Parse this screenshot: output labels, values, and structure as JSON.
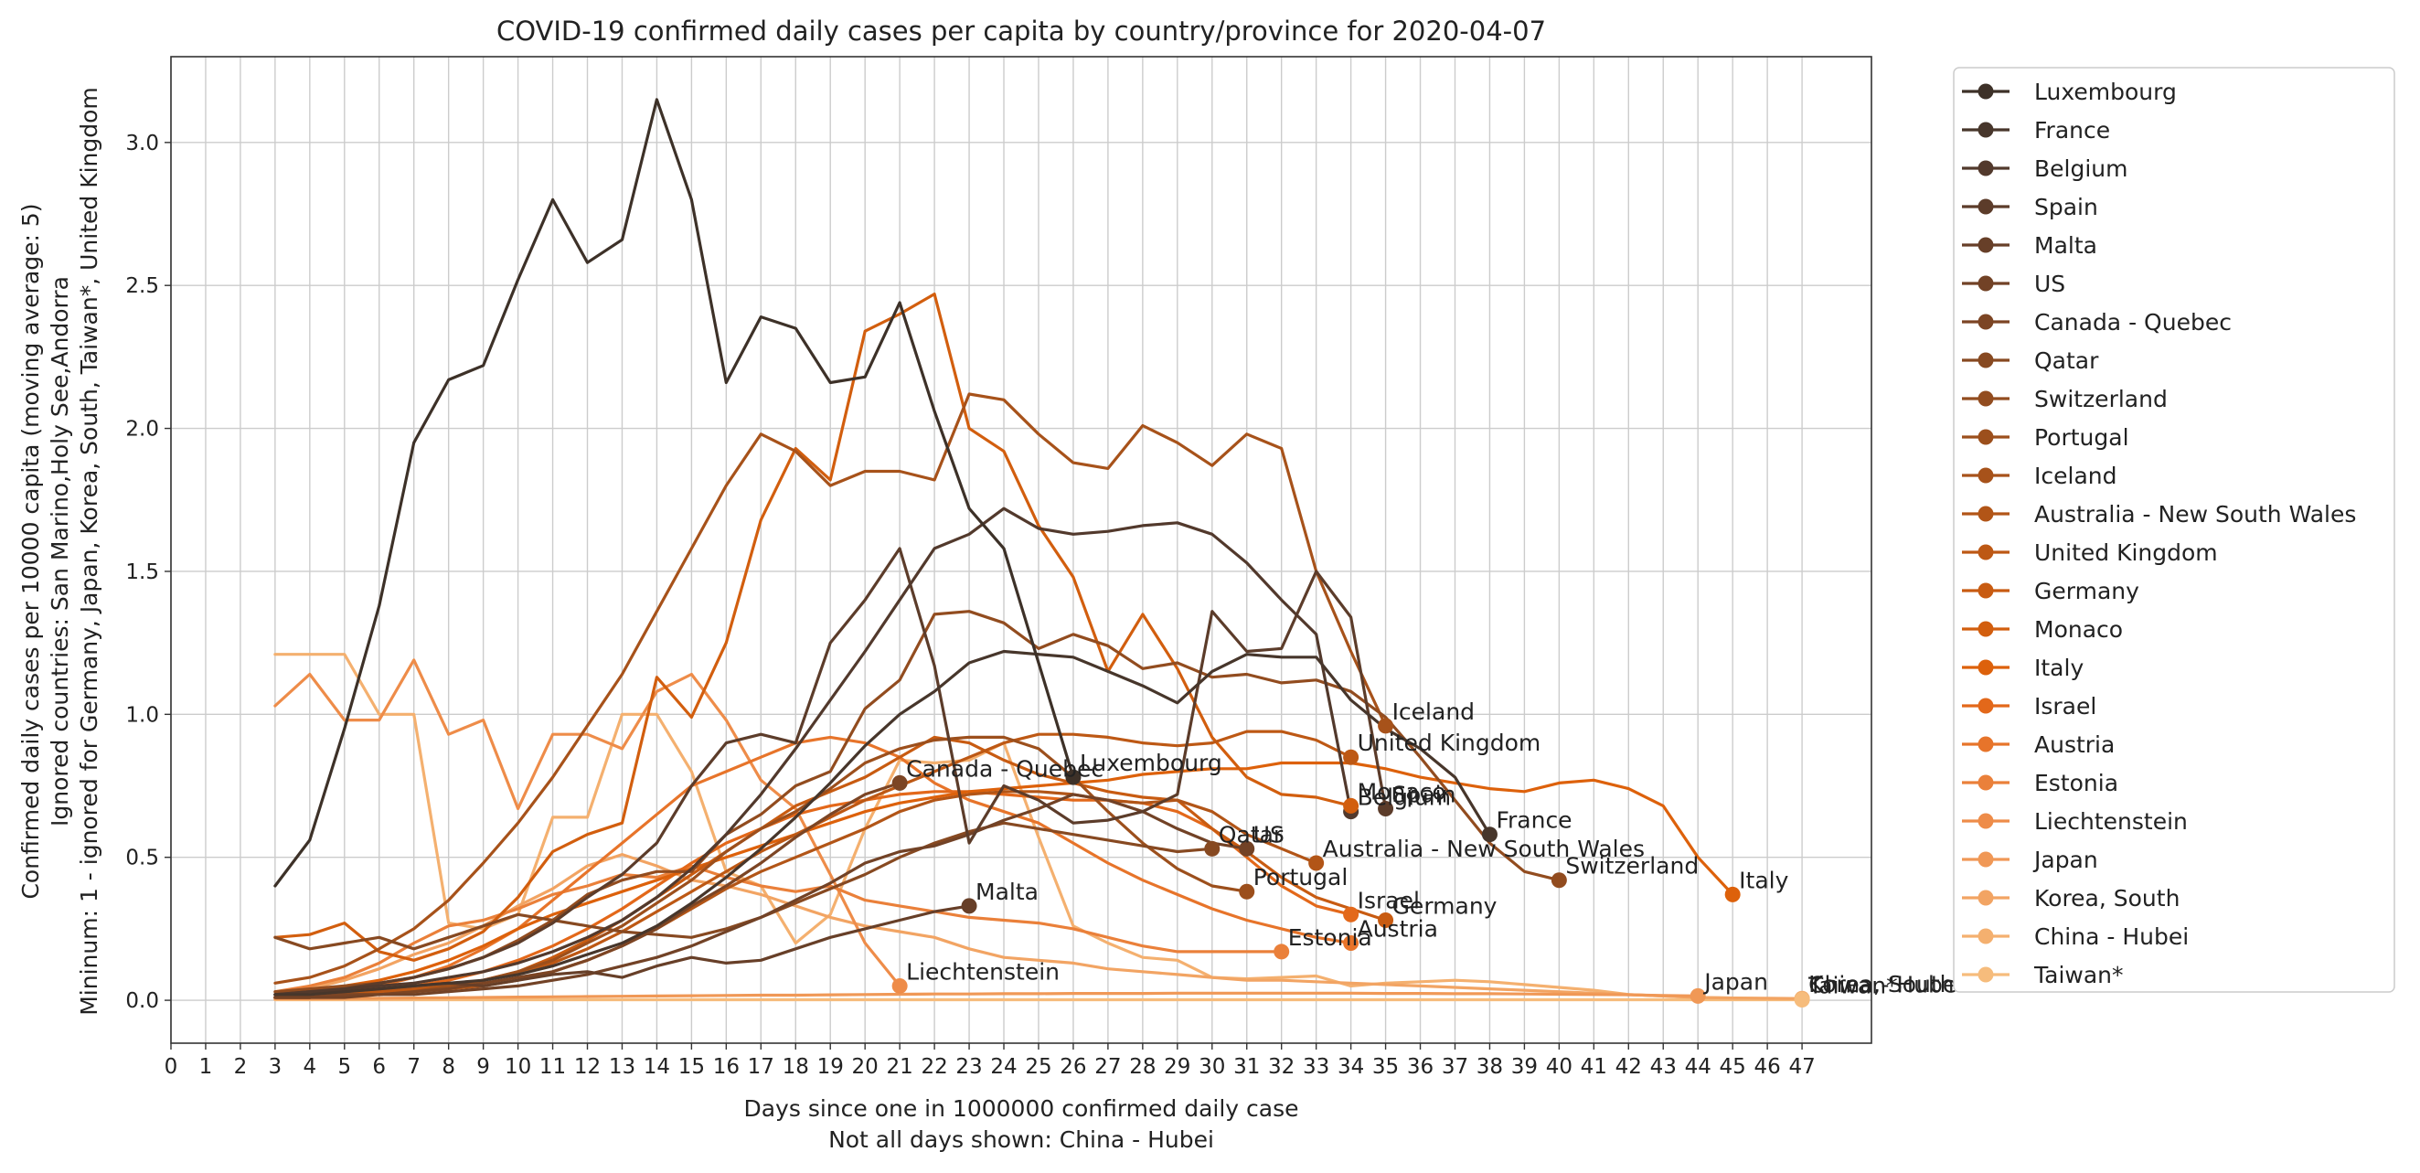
{
  "chart_data": {
    "type": "line",
    "title": "COVID-19 confirmed daily cases per capita by country/province for 2020-04-07",
    "xlabel": "Days since one in 1000000 confirmed daily case",
    "xlabel_note": "Not all days shown: China - Hubei",
    "ylabel_lines": [
      "Confirmed daily cases per 10000 capita (moving average: 5)",
      "Ignored countries: San Marino,Holy See,Andorra",
      "Mininum: 1 - ignored for Germany, Japan, Korea, South, Taiwan*, United Kingdom"
    ],
    "xlim": [
      0,
      49
    ],
    "ylim": [
      -0.15,
      3.3
    ],
    "x_ticks": [
      0,
      1,
      2,
      3,
      4,
      5,
      6,
      7,
      8,
      9,
      10,
      11,
      12,
      13,
      14,
      15,
      16,
      17,
      18,
      19,
      20,
      21,
      22,
      23,
      24,
      25,
      26,
      27,
      28,
      29,
      30,
      31,
      32,
      33,
      34,
      35,
      36,
      37,
      38,
      39,
      40,
      41,
      42,
      43,
      44,
      45,
      46,
      47
    ],
    "y_ticks": [
      0.0,
      0.5,
      1.0,
      1.5,
      2.0,
      2.5,
      3.0
    ],
    "y_tick_labels": [
      "0.0",
      "0.5",
      "1.0",
      "1.5",
      "2.0",
      "2.5",
      "3.0"
    ],
    "grid": true,
    "legend_position": "outside-right",
    "series": [
      {
        "name": "Luxembourg",
        "color": "#3d3128",
        "label_end": "Luxembourg",
        "x_start": 3,
        "values": [
          0.4,
          0.56,
          0.95,
          1.38,
          1.95,
          2.17,
          2.22,
          2.52,
          2.8,
          2.58,
          2.66,
          3.15,
          2.8,
          2.16,
          2.39,
          2.35,
          2.16,
          2.18,
          2.44,
          2.06,
          1.72,
          1.58,
          1.18,
          0.78
        ]
      },
      {
        "name": "France",
        "color": "#47362b",
        "label_end": "France",
        "x_start": 3,
        "values": [
          0.02,
          0.02,
          0.03,
          0.04,
          0.05,
          0.06,
          0.07,
          0.09,
          0.12,
          0.16,
          0.2,
          0.26,
          0.34,
          0.43,
          0.53,
          0.64,
          0.76,
          0.89,
          1.0,
          1.08,
          1.18,
          1.22,
          1.21,
          1.2,
          1.15,
          1.1,
          1.04,
          1.15,
          1.21,
          1.2,
          1.2,
          1.05,
          0.95,
          0.88,
          0.78,
          0.58
        ]
      },
      {
        "name": "Belgium",
        "color": "#52392c",
        "label_end": "Belgium",
        "x_start": 3,
        "values": [
          0.02,
          0.03,
          0.04,
          0.05,
          0.06,
          0.08,
          0.1,
          0.13,
          0.17,
          0.22,
          0.28,
          0.36,
          0.46,
          0.58,
          0.72,
          0.88,
          1.05,
          1.22,
          1.4,
          1.58,
          1.63,
          1.72,
          1.65,
          1.63,
          1.64,
          1.66,
          1.67,
          1.63,
          1.53,
          1.4,
          1.28,
          0.66
        ]
      },
      {
        "name": "Spain",
        "color": "#5c3c2a",
        "label_end": "Spain",
        "x_start": 3,
        "values": [
          0.02,
          0.03,
          0.04,
          0.06,
          0.08,
          0.11,
          0.15,
          0.2,
          0.27,
          0.36,
          0.44,
          0.55,
          0.75,
          0.9,
          0.93,
          0.9,
          1.25,
          1.4,
          1.58,
          1.17,
          0.55,
          0.75,
          0.7,
          0.62,
          0.63,
          0.66,
          0.72,
          1.36,
          1.22,
          1.23,
          1.5,
          1.34,
          0.67
        ]
      },
      {
        "name": "Malta",
        "color": "#673f28",
        "label_end": "Malta",
        "x_start": 3,
        "values": [
          0.02,
          0.03,
          0.03,
          0.04,
          0.05,
          0.06,
          0.05,
          0.07,
          0.09,
          0.1,
          0.08,
          0.12,
          0.15,
          0.13,
          0.14,
          0.18,
          0.22,
          0.25,
          0.28,
          0.31,
          0.33
        ]
      },
      {
        "name": "US",
        "color": "#724226",
        "label_end": "US",
        "x_start": 3,
        "values": [
          0.01,
          0.01,
          0.01,
          0.02,
          0.02,
          0.03,
          0.04,
          0.05,
          0.07,
          0.09,
          0.12,
          0.15,
          0.19,
          0.24,
          0.29,
          0.35,
          0.41,
          0.48,
          0.52,
          0.54,
          0.58,
          0.63,
          0.67,
          0.72,
          0.7,
          0.66,
          0.6,
          0.55,
          0.53
        ]
      },
      {
        "name": "Canada - Quebec",
        "color": "#7c4524",
        "label_end": "Canada - Quebec",
        "x_start": 3,
        "values": [
          0.01,
          0.01,
          0.02,
          0.02,
          0.03,
          0.04,
          0.06,
          0.08,
          0.1,
          0.14,
          0.19,
          0.25,
          0.33,
          0.4,
          0.48,
          0.57,
          0.65,
          0.72,
          0.76
        ]
      },
      {
        "name": "Qatar",
        "color": "#874921",
        "label_end": "Qatar",
        "x_start": 3,
        "values": [
          0.22,
          0.18,
          0.2,
          0.22,
          0.18,
          0.22,
          0.26,
          0.3,
          0.28,
          0.26,
          0.24,
          0.23,
          0.22,
          0.25,
          0.29,
          0.34,
          0.39,
          0.44,
          0.5,
          0.55,
          0.59,
          0.62,
          0.6,
          0.58,
          0.56,
          0.54,
          0.52,
          0.53
        ]
      },
      {
        "name": "Switzerland",
        "color": "#924c1f",
        "label_end": "Switzerland",
        "x_start": 3,
        "values": [
          0.03,
          0.04,
          0.05,
          0.06,
          0.08,
          0.11,
          0.15,
          0.21,
          0.28,
          0.37,
          0.42,
          0.45,
          0.45,
          0.58,
          0.65,
          0.75,
          0.8,
          1.02,
          1.12,
          1.35,
          1.36,
          1.32,
          1.23,
          1.28,
          1.24,
          1.16,
          1.18,
          1.13,
          1.14,
          1.11,
          1.12,
          1.08,
          0.99,
          0.85,
          0.7,
          0.55,
          0.45,
          0.42
        ]
      },
      {
        "name": "Portugal",
        "color": "#9c4f1c",
        "label_end": "Portugal",
        "x_start": 3,
        "values": [
          0.01,
          0.01,
          0.02,
          0.02,
          0.03,
          0.05,
          0.07,
          0.1,
          0.14,
          0.2,
          0.26,
          0.34,
          0.42,
          0.52,
          0.6,
          0.66,
          0.74,
          0.83,
          0.88,
          0.91,
          0.92,
          0.92,
          0.88,
          0.78,
          0.66,
          0.55,
          0.46,
          0.4,
          0.38
        ]
      },
      {
        "name": "Iceland",
        "color": "#a7521a",
        "label_end": "Iceland",
        "x_start": 3,
        "values": [
          0.06,
          0.08,
          0.12,
          0.18,
          0.25,
          0.35,
          0.48,
          0.62,
          0.78,
          0.96,
          1.14,
          1.36,
          1.58,
          1.8,
          1.98,
          1.92,
          1.8,
          1.85,
          1.85,
          1.82,
          2.12,
          2.1,
          1.98,
          1.88,
          1.86,
          2.01,
          1.95,
          1.87,
          1.98,
          1.93,
          1.5,
          1.22,
          0.96
        ]
      },
      {
        "name": "Australia - New South Wales",
        "color": "#b25517",
        "label_end": "Australia - New South Wales",
        "x_start": 3,
        "values": [
          0.01,
          0.01,
          0.02,
          0.02,
          0.03,
          0.04,
          0.05,
          0.07,
          0.1,
          0.14,
          0.19,
          0.25,
          0.32,
          0.39,
          0.45,
          0.5,
          0.55,
          0.6,
          0.66,
          0.7,
          0.72,
          0.73,
          0.73,
          0.72,
          0.7,
          0.69,
          0.7,
          0.66,
          0.58,
          0.53,
          0.48
        ]
      },
      {
        "name": "United Kingdom",
        "color": "#bd5814",
        "label_end": "United Kingdom",
        "x_start": 3,
        "values": [
          0.01,
          0.01,
          0.02,
          0.03,
          0.04,
          0.05,
          0.07,
          0.1,
          0.13,
          0.18,
          0.24,
          0.31,
          0.38,
          0.45,
          0.52,
          0.58,
          0.64,
          0.7,
          0.75,
          0.8,
          0.85,
          0.9,
          0.93,
          0.93,
          0.92,
          0.9,
          0.89,
          0.9,
          0.94,
          0.94,
          0.91,
          0.85
        ]
      },
      {
        "name": "Germany",
        "color": "#c85b11",
        "label_end": "Germany",
        "x_start": 3,
        "values": [
          0.01,
          0.01,
          0.02,
          0.02,
          0.03,
          0.05,
          0.07,
          0.1,
          0.15,
          0.21,
          0.28,
          0.36,
          0.44,
          0.52,
          0.6,
          0.68,
          0.73,
          0.78,
          0.85,
          0.92,
          0.9,
          0.84,
          0.79,
          0.76,
          0.73,
          0.71,
          0.7,
          0.6,
          0.52,
          0.43,
          0.36,
          0.32,
          0.28
        ]
      },
      {
        "name": "Monaco",
        "color": "#d25e0e",
        "label_end": "Monaco",
        "x_start": 3,
        "values": [
          0.22,
          0.23,
          0.27,
          0.17,
          0.14,
          0.18,
          0.24,
          0.36,
          0.52,
          0.58,
          0.62,
          1.13,
          0.99,
          1.25,
          1.68,
          1.93,
          1.82,
          2.34,
          2.4,
          2.47,
          2.0,
          1.92,
          1.66,
          1.48,
          1.15,
          1.35,
          1.16,
          0.92,
          0.78,
          0.72,
          0.71,
          0.68
        ]
      },
      {
        "name": "Italy",
        "color": "#dd610b",
        "label_end": "Italy",
        "x_start": 3,
        "values": [
          0.02,
          0.03,
          0.05,
          0.07,
          0.1,
          0.14,
          0.19,
          0.25,
          0.3,
          0.34,
          0.38,
          0.42,
          0.46,
          0.5,
          0.54,
          0.58,
          0.62,
          0.66,
          0.69,
          0.71,
          0.73,
          0.74,
          0.75,
          0.76,
          0.77,
          0.79,
          0.8,
          0.81,
          0.81,
          0.83,
          0.83,
          0.83,
          0.81,
          0.78,
          0.76,
          0.74,
          0.73,
          0.76,
          0.77,
          0.74,
          0.68,
          0.5,
          0.37
        ]
      },
      {
        "name": "Israel",
        "color": "#e3681a",
        "label_end": "Israel",
        "x_start": 3,
        "values": [
          0.02,
          0.02,
          0.03,
          0.04,
          0.05,
          0.07,
          0.1,
          0.14,
          0.19,
          0.25,
          0.32,
          0.4,
          0.48,
          0.55,
          0.6,
          0.65,
          0.68,
          0.7,
          0.72,
          0.73,
          0.73,
          0.72,
          0.71,
          0.7,
          0.7,
          0.69,
          0.66,
          0.6,
          0.5,
          0.4,
          0.33,
          0.3
        ]
      },
      {
        "name": "Austria",
        "color": "#e7742a",
        "label_end": "Austria",
        "x_start": 3,
        "values": [
          0.01,
          0.02,
          0.03,
          0.05,
          0.08,
          0.12,
          0.18,
          0.25,
          0.35,
          0.45,
          0.55,
          0.65,
          0.75,
          0.8,
          0.85,
          0.9,
          0.92,
          0.9,
          0.85,
          0.76,
          0.7,
          0.66,
          0.62,
          0.55,
          0.48,
          0.42,
          0.37,
          0.32,
          0.28,
          0.25,
          0.22,
          0.2
        ]
      },
      {
        "name": "Estonia",
        "color": "#ea803a",
        "label_end": "Estonia",
        "x_start": 3,
        "values": [
          0.03,
          0.05,
          0.08,
          0.13,
          0.2,
          0.26,
          0.28,
          0.32,
          0.37,
          0.4,
          0.44,
          0.43,
          0.47,
          0.43,
          0.4,
          0.38,
          0.4,
          0.35,
          0.33,
          0.31,
          0.29,
          0.28,
          0.27,
          0.25,
          0.22,
          0.19,
          0.17,
          0.17,
          0.17,
          0.17
        ]
      },
      {
        "name": "Liechtenstein",
        "color": "#ee8c49",
        "label_end": "Liechtenstein",
        "x_start": 3,
        "values": [
          1.03,
          1.14,
          0.98,
          0.98,
          1.19,
          0.93,
          0.98,
          0.67,
          0.93,
          0.93,
          0.88,
          1.08,
          1.14,
          0.98,
          0.77,
          0.67,
          0.44,
          0.2,
          0.05
        ]
      },
      {
        "name": "Japan",
        "color": "#f09856",
        "label_end": "Japan",
        "x_start": 3,
        "values": [
          0.005,
          0.005,
          0.006,
          0.007,
          0.008,
          0.009,
          0.01,
          0.011,
          0.012,
          0.013,
          0.014,
          0.015,
          0.016,
          0.017,
          0.018,
          0.018,
          0.019,
          0.02,
          0.021,
          0.022,
          0.022,
          0.023,
          0.023,
          0.024,
          0.024,
          0.024,
          0.025,
          0.025,
          0.025,
          0.025,
          0.025,
          0.025,
          0.024,
          0.024,
          0.023,
          0.023,
          0.022,
          0.021,
          0.02,
          0.019,
          0.017,
          0.015
        ]
      },
      {
        "name": "Korea, South",
        "color": "#f2a463",
        "label_end": "Korea, South",
        "x_start": 3,
        "values": [
          0.02,
          0.04,
          0.07,
          0.11,
          0.16,
          0.2,
          0.26,
          0.33,
          0.39,
          0.47,
          0.51,
          0.47,
          0.42,
          0.4,
          0.37,
          0.33,
          0.29,
          0.26,
          0.24,
          0.22,
          0.18,
          0.15,
          0.14,
          0.13,
          0.11,
          0.1,
          0.09,
          0.08,
          0.07,
          0.07,
          0.065,
          0.06,
          0.055,
          0.05,
          0.045,
          0.04,
          0.035,
          0.03,
          0.025,
          0.02,
          0.015,
          0.01,
          0.008,
          0.007,
          0.006
        ]
      },
      {
        "name": "China - Hubei",
        "color": "#f4b06f",
        "label_end": "China - Hubei",
        "x_start": 3,
        "values": [
          1.21,
          1.21,
          1.21,
          1.0,
          1.0,
          0.27,
          0.25,
          0.3,
          0.64,
          0.64,
          1.0,
          1.0,
          0.8,
          0.45,
          0.4,
          0.2,
          0.3,
          0.6,
          0.84,
          0.83,
          0.84,
          0.9,
          0.57,
          0.26,
          0.2,
          0.15,
          0.14,
          0.08,
          0.075,
          0.08,
          0.085,
          0.05,
          0.06,
          0.065,
          0.07,
          0.065,
          0.055,
          0.045,
          0.035,
          0.02,
          0.015,
          0.01,
          0.008,
          0.006,
          0.005
        ]
      },
      {
        "name": "Taiwan*",
        "color": "#f6bc7c",
        "label_end": "Taiwan*",
        "x_start": 3,
        "values": [
          0.002,
          0.002,
          0.002,
          0.002,
          0.002,
          0.002,
          0.002,
          0.002,
          0.002,
          0.002,
          0.002,
          0.002,
          0.002,
          0.002,
          0.002,
          0.002,
          0.002,
          0.002,
          0.002,
          0.002,
          0.002,
          0.002,
          0.002,
          0.002,
          0.002,
          0.002,
          0.002,
          0.002,
          0.002,
          0.002,
          0.002,
          0.002,
          0.002,
          0.002,
          0.002,
          0.002,
          0.002,
          0.002,
          0.002,
          0.002,
          0.002,
          0.002,
          0.002,
          0.002,
          0.002
        ]
      }
    ]
  }
}
